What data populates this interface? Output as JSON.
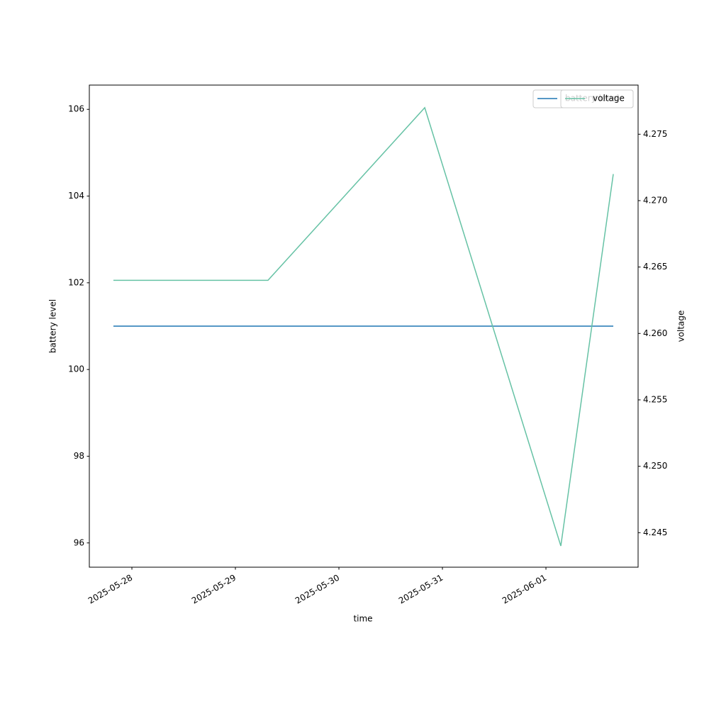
{
  "chart_data": {
    "type": "line",
    "xlabel": "time",
    "ylabel": "battery level",
    "y2label": "voltage",
    "x": [
      "2025-05-27 19:43",
      "2025-05-29 07:33",
      "2025-05-30 19:54",
      "2025-06-01 03:27",
      "2025-06-01 15:37"
    ],
    "series": [
      {
        "name": "battery level",
        "color": "#1f77b4",
        "values": [
          101,
          101,
          101,
          101,
          101
        ],
        "axis": "y"
      },
      {
        "name": "voltage",
        "color": "#66c2a5",
        "values": [
          4.264,
          4.264,
          4.277,
          4.244,
          4.272
        ],
        "axis": "y2"
      }
    ],
    "xlim": [
      "2025-05-27 14:08",
      "2025-06-01 21:22"
    ],
    "xticks": [
      "2025-05-28",
      "2025-05-29",
      "2025-05-30",
      "2025-05-31",
      "2025-06-01"
    ],
    "ylim": [
      95.44,
      106.56
    ],
    "yticks": [
      96,
      98,
      100,
      102,
      104,
      106
    ],
    "y2lim": [
      4.2424,
      4.2787
    ],
    "y2ticks": [
      4.245,
      {
        "value": 4.25,
        "label": "4.250"
      },
      4.255,
      {
        "value": 4.26,
        "label": "4.260"
      },
      4.265,
      {
        "value": 4.27,
        "label": "4.270"
      },
      4.275
    ],
    "legend": "upper right",
    "grid": false
  }
}
